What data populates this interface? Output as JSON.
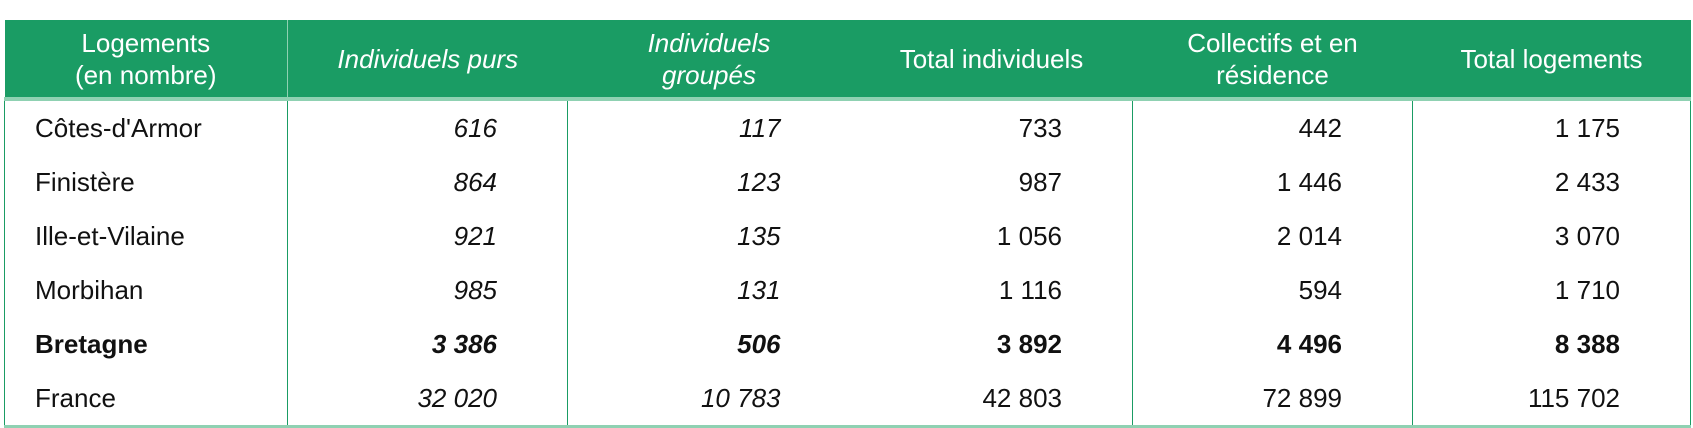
{
  "header": {
    "col0_line1": "Logements",
    "col0_line2": "(en nombre)",
    "columns": [
      "Individuels purs",
      "Individuels groupés",
      "Total individuels",
      "Collectifs et en résidence",
      "Total logements"
    ]
  },
  "colors": {
    "header_bg": "#1a9c64",
    "border": "#1a9c64"
  },
  "rows": [
    {
      "name": "Côtes-d'Armor",
      "values": [
        "616",
        "117",
        "733",
        "442",
        "1 175"
      ]
    },
    {
      "name": "Finistère",
      "values": [
        "864",
        "123",
        "987",
        "1 446",
        "2 433"
      ]
    },
    {
      "name": "Ille-et-Vilaine",
      "values": [
        "921",
        "135",
        "1 056",
        "2 014",
        "3 070"
      ]
    },
    {
      "name": "Morbihan",
      "values": [
        "985",
        "131",
        "1 116",
        "594",
        "1 710"
      ]
    },
    {
      "name": "Bretagne",
      "values": [
        "3 386",
        "506",
        "3 892",
        "4 496",
        "8 388"
      ],
      "bold": true
    },
    {
      "name": "France",
      "values": [
        "32 020",
        "10 783",
        "42 803",
        "72 899",
        "115 702"
      ]
    }
  ]
}
